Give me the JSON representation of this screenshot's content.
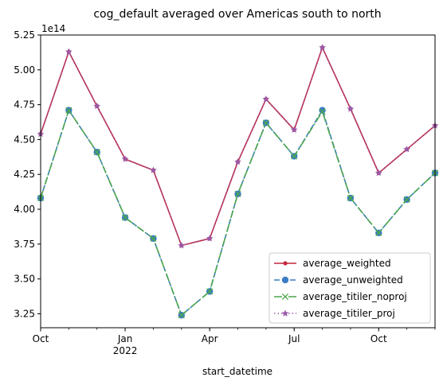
{
  "chart_data": {
    "type": "line",
    "title": "cog_default averaged over Americas south to north",
    "xlabel": "start_datetime",
    "ylabel": "",
    "y_offset_label": "1e14",
    "x": [
      "2021-10",
      "2021-11",
      "2021-12",
      "2022-01",
      "2022-02",
      "2022-03",
      "2022-04",
      "2022-05",
      "2022-06",
      "2022-07",
      "2022-08",
      "2022-09",
      "2022-10",
      "2022-11",
      "2022-12"
    ],
    "x_tick_labels": [
      {
        "date": "2021-10",
        "label": "Oct",
        "sub": ""
      },
      {
        "date": "2022-01",
        "label": "Jan",
        "sub": "2022"
      },
      {
        "date": "2022-04",
        "label": "Apr",
        "sub": ""
      },
      {
        "date": "2022-07",
        "label": "Jul",
        "sub": ""
      },
      {
        "date": "2022-10",
        "label": "Oct",
        "sub": ""
      }
    ],
    "xlim": [
      "2021-10",
      "2022-12"
    ],
    "ylim": [
      3.15,
      5.25
    ],
    "y_ticks": [
      "3.25",
      "3.50",
      "3.75",
      "4.00",
      "4.25",
      "4.50",
      "4.75",
      "5.00",
      "5.25"
    ],
    "grid": false,
    "legend_position": "lower-right",
    "series": [
      {
        "name": "average_weighted",
        "color": "#c1273c",
        "style": "solid",
        "marker": "dot",
        "values": [
          4.54,
          5.13,
          4.74,
          4.36,
          4.28,
          3.74,
          3.79,
          4.34,
          4.79,
          4.57,
          5.16,
          4.72,
          4.26,
          4.43,
          4.6
        ]
      },
      {
        "name": "average_unweighted",
        "color": "#3a7dc4",
        "style": "dashed",
        "marker": "circle",
        "values": [
          4.08,
          4.71,
          4.41,
          3.94,
          3.79,
          3.24,
          3.41,
          4.11,
          4.62,
          4.38,
          4.71,
          4.08,
          3.83,
          4.07,
          4.26
        ]
      },
      {
        "name": "average_titiler_noproj",
        "color": "#4ca64c",
        "style": "dashdot",
        "marker": "x",
        "values": [
          4.08,
          4.71,
          4.41,
          3.94,
          3.79,
          3.24,
          3.41,
          4.11,
          4.62,
          4.38,
          4.7,
          4.08,
          3.83,
          4.07,
          4.26
        ]
      },
      {
        "name": "average_titiler_proj",
        "color": "#9b59a8",
        "style": "dotted",
        "marker": "star",
        "values": [
          4.54,
          5.13,
          4.74,
          4.36,
          4.28,
          3.74,
          3.79,
          4.34,
          4.79,
          4.57,
          5.16,
          4.72,
          4.26,
          4.43,
          4.6
        ]
      }
    ]
  }
}
